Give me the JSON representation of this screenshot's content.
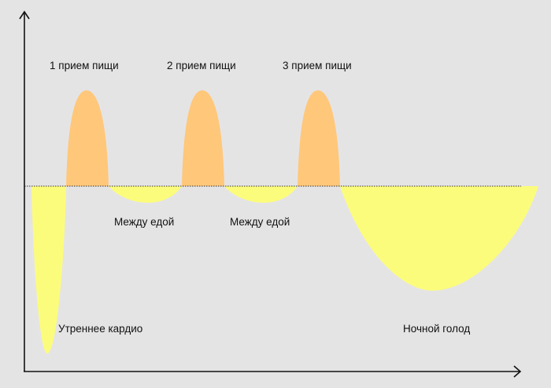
{
  "colors": {
    "background": "#e5e4e5",
    "meal_peak": "#ffc77a",
    "deficit": "#fcfc7c",
    "axis": "#111111"
  },
  "labels": {
    "meal1": "1 прием пищи",
    "meal2": "2 прием пищи",
    "meal3": "3 прием пищи",
    "between1": "Между едой",
    "between2": "Между едой",
    "morning": "Утреннее кардио",
    "night": "Ночной голод"
  }
}
